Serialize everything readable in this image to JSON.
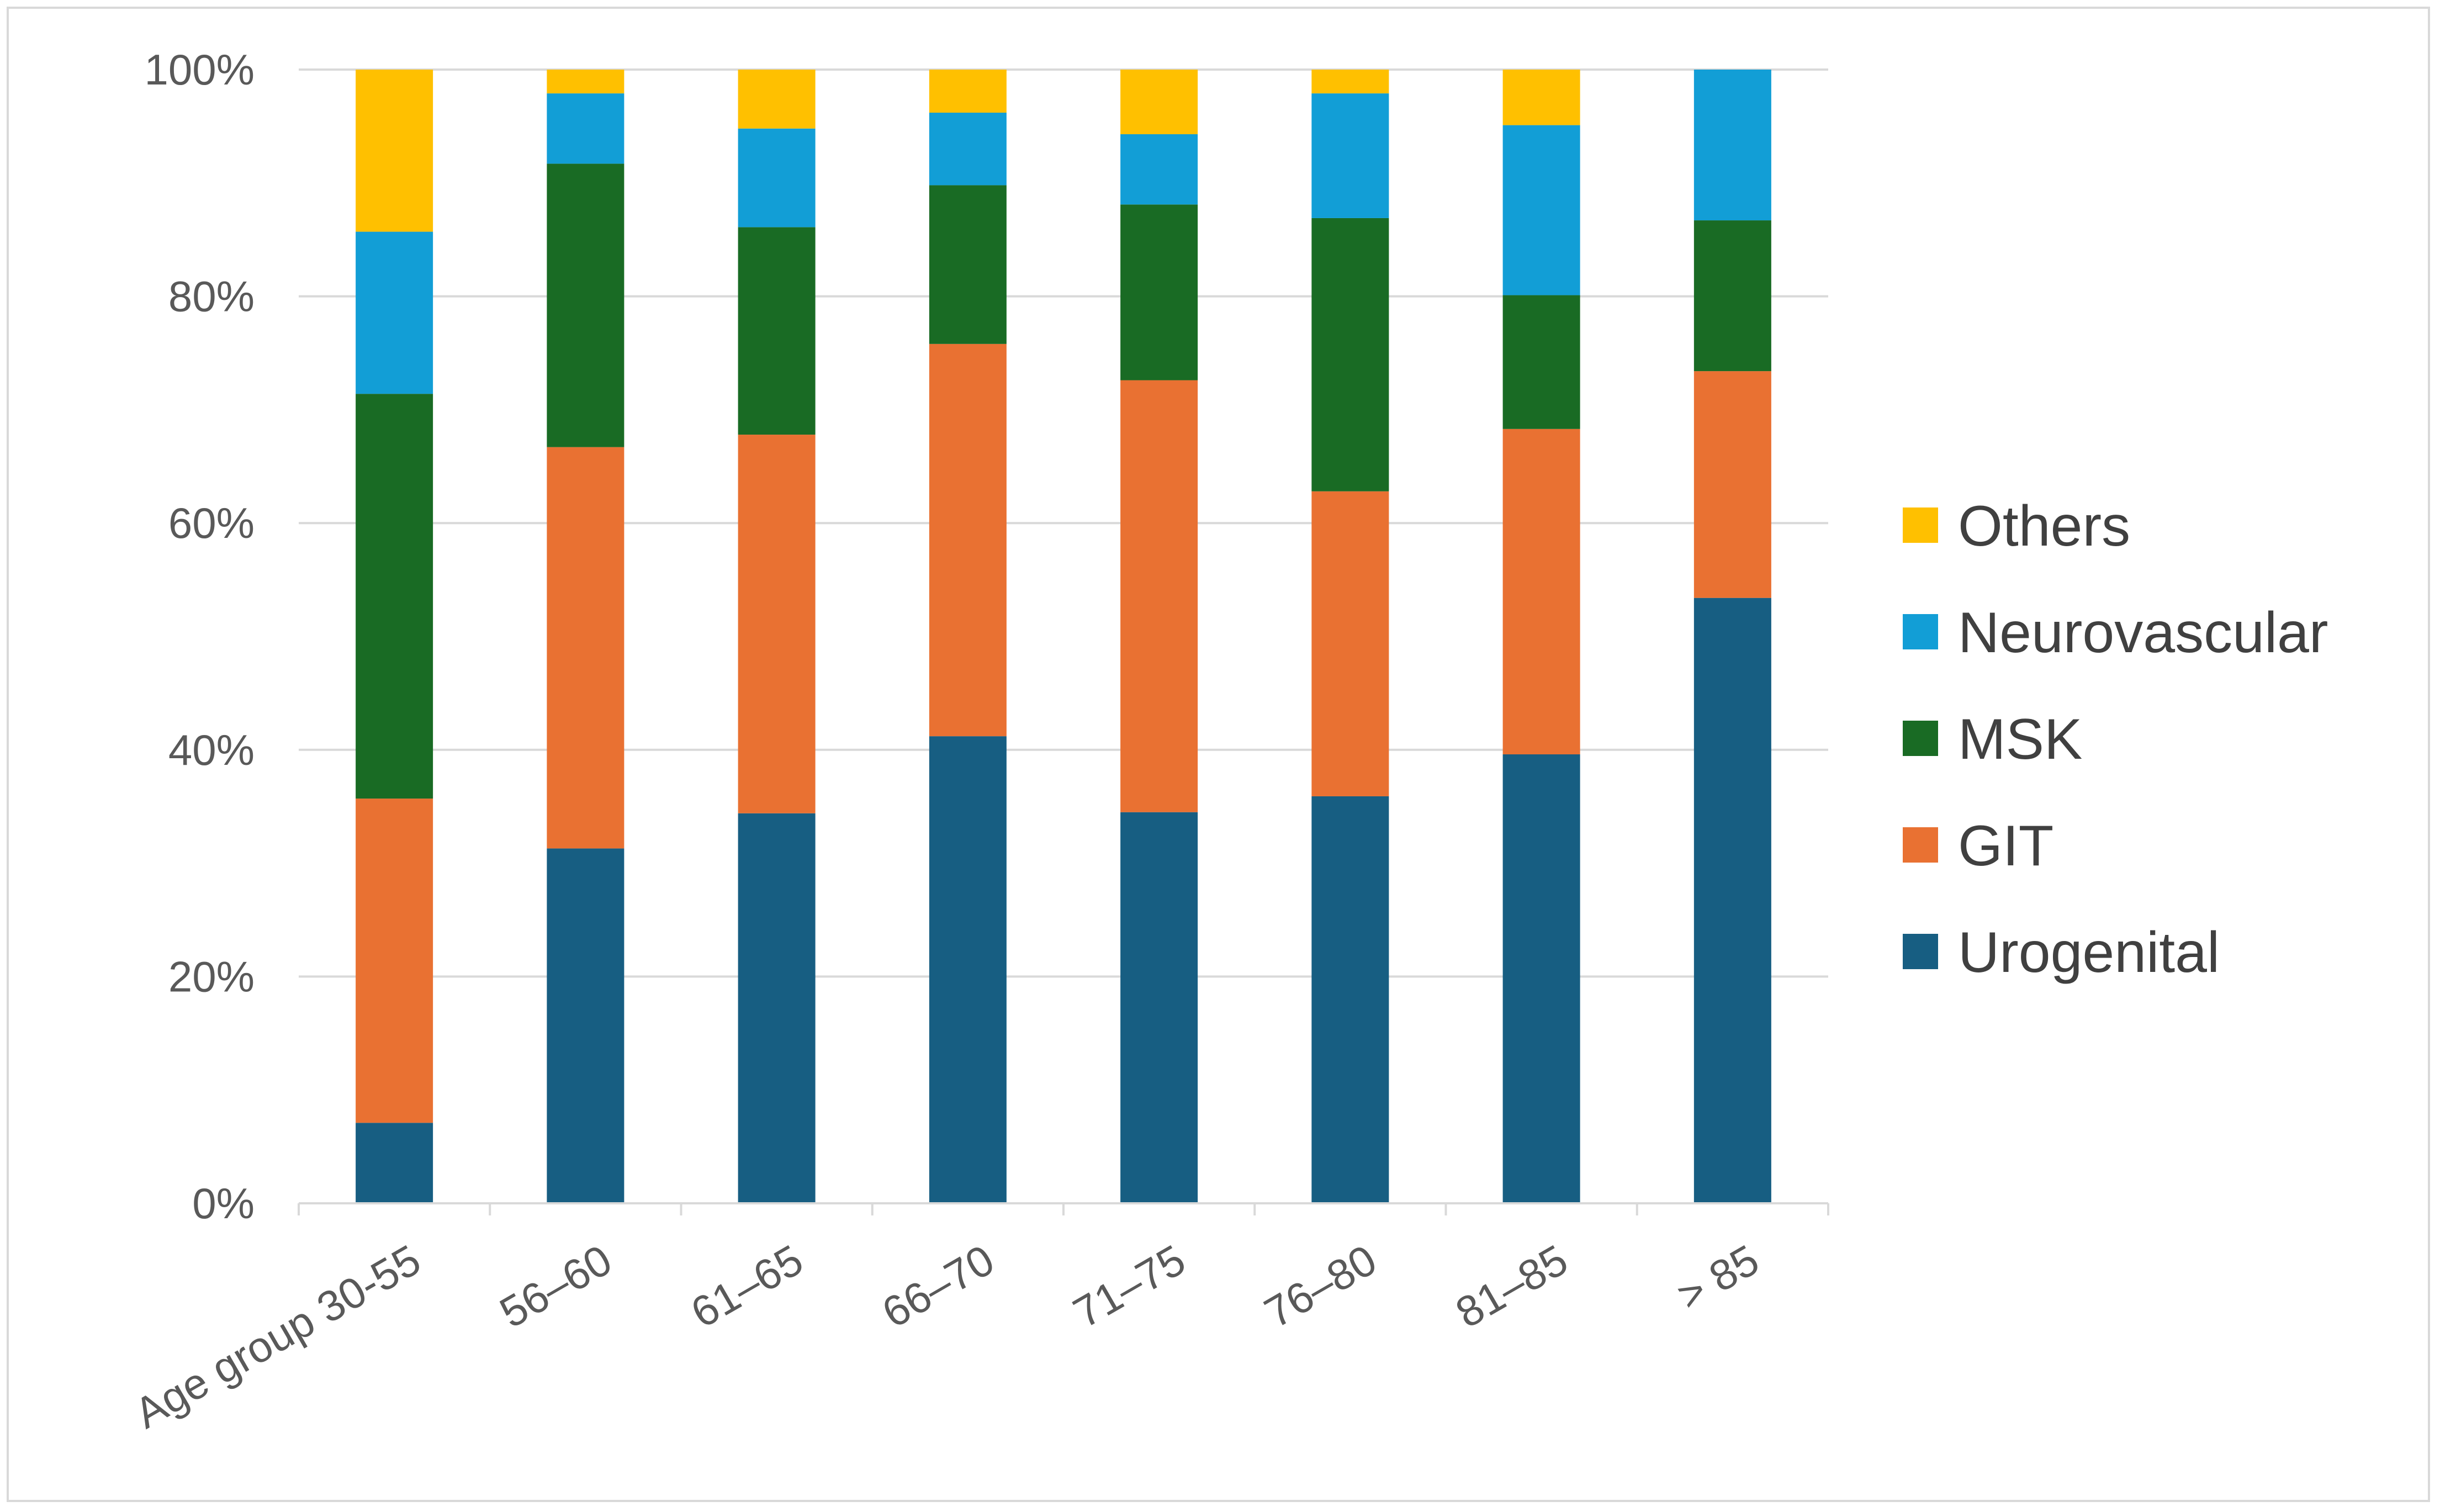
{
  "chart_data": {
    "type": "bar",
    "stacked": true,
    "normalized": true,
    "title": "",
    "xlabel": "",
    "ylabel": "",
    "ylim": [
      0,
      100
    ],
    "yticks": [
      "0%",
      "20%",
      "40%",
      "60%",
      "80%",
      "100%"
    ],
    "categories": [
      "Age group 30-55",
      "56–60",
      "61–65",
      "66–70",
      "71–75",
      "76–80",
      "81–85",
      "> 85"
    ],
    "series": [
      {
        "name": "Urogenital",
        "color": "#175e82",
        "values": [
          7.1,
          31.3,
          34.4,
          41.2,
          34.5,
          35.9,
          39.6,
          53.4
        ]
      },
      {
        "name": "GIT",
        "color": "#e97132",
        "values": [
          28.6,
          35.4,
          33.4,
          34.6,
          38.1,
          26.9,
          28.7,
          20.0
        ]
      },
      {
        "name": "MSK",
        "color": "#196b24",
        "values": [
          35.7,
          25.0,
          18.3,
          14.0,
          15.5,
          24.1,
          11.8,
          13.3
        ]
      },
      {
        "name": "Neurovascular",
        "color": "#129ed6",
        "values": [
          14.3,
          6.2,
          8.7,
          6.4,
          6.2,
          11.0,
          15.0,
          13.3
        ]
      },
      {
        "name": "Others",
        "color": "#ffc000",
        "values": [
          14.3,
          2.1,
          5.2,
          3.8,
          5.7,
          2.1,
          4.9,
          0.0
        ]
      }
    ],
    "legend_position": "right",
    "grid": true
  }
}
